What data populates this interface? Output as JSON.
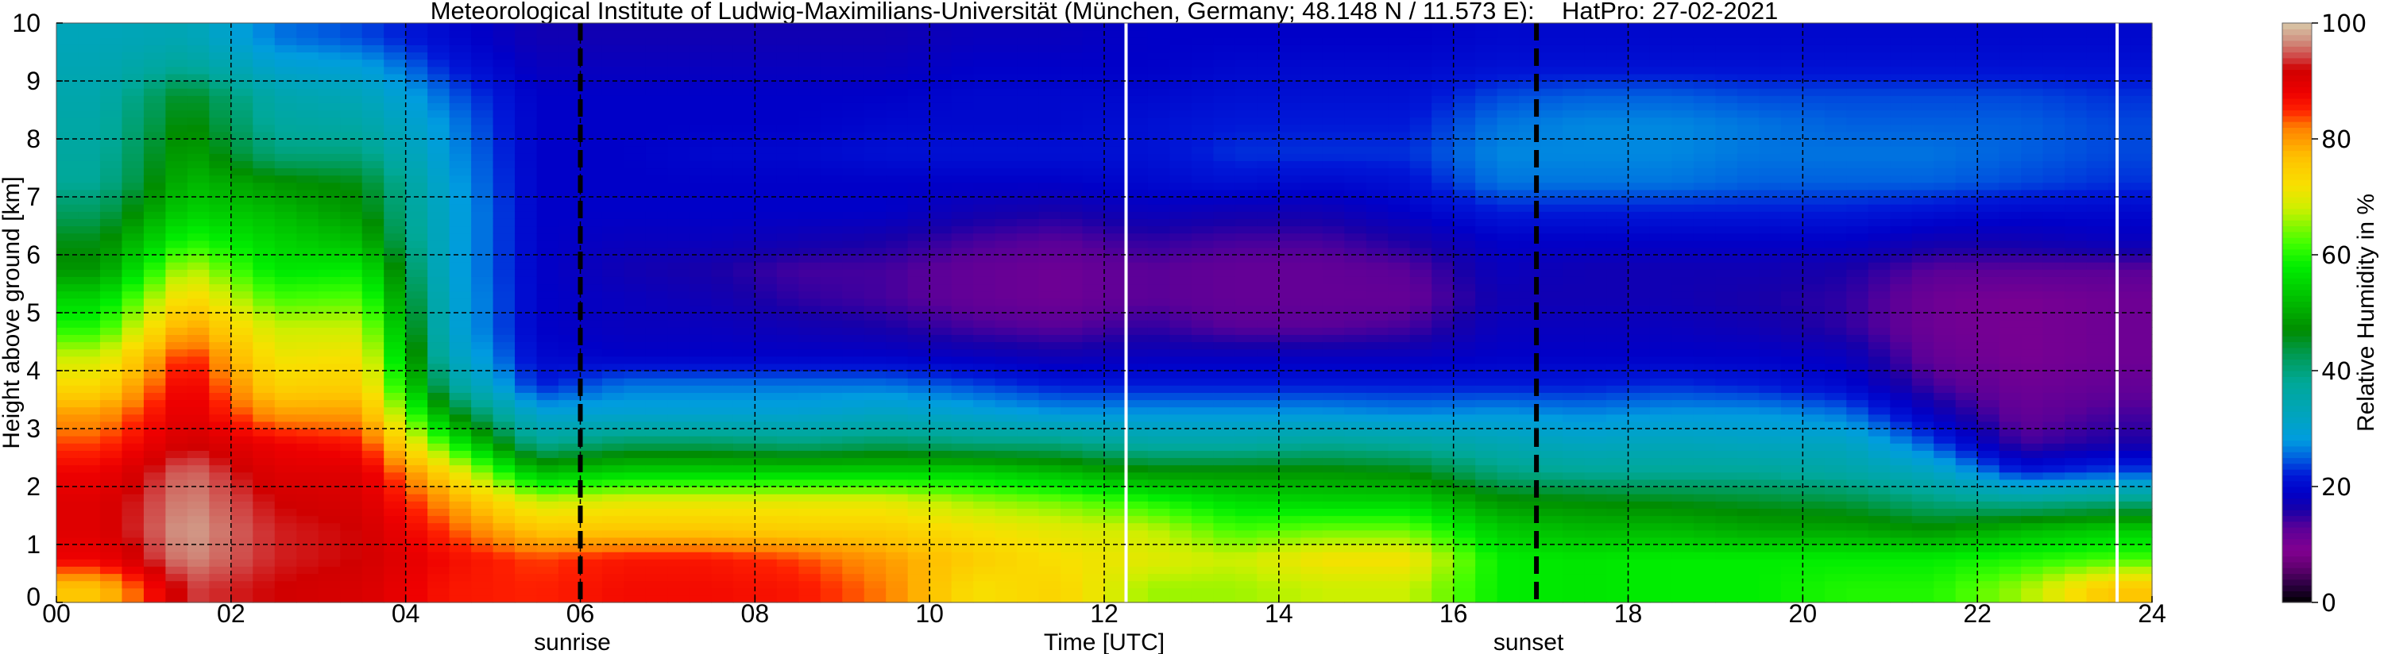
{
  "chart_data": {
    "type": "heatmap",
    "title": "Meteorological Institute of Ludwig-Maximilians-Universität (München, Germany; 48.148 N / 11.573 E):    HatPro: 27-02-2021",
    "xlabel": "Time [UTC]",
    "ylabel": "Height above ground [km]",
    "colorbar_label": "Relative Humidity in %",
    "xlim": [
      0,
      24
    ],
    "ylim": [
      0,
      10
    ],
    "clim": [
      0,
      100
    ],
    "x_ticks": [
      0,
      2,
      4,
      6,
      8,
      10,
      12,
      14,
      16,
      18,
      20,
      22,
      24
    ],
    "x_tick_labels": [
      "00",
      "02",
      "04",
      "06",
      "08",
      "10",
      "12",
      "14",
      "16",
      "18",
      "20",
      "22",
      "24"
    ],
    "y_ticks": [
      0,
      1,
      2,
      3,
      4,
      5,
      6,
      7,
      8,
      9,
      10
    ],
    "y_tick_labels": [
      "0",
      "1",
      "2",
      "3",
      "4",
      "5",
      "6",
      "7",
      "8",
      "9",
      "10"
    ],
    "colorbar_ticks": [
      0,
      20,
      40,
      60,
      80,
      100
    ],
    "colorbar_tick_labels": [
      "0",
      "20",
      "40",
      "60",
      "80",
      "100"
    ],
    "grid": true,
    "events": [
      {
        "label": "sunrise",
        "time": 6.0
      },
      {
        "label": "sunset",
        "time": 16.95
      }
    ],
    "missing_times": [
      12.25,
      23.6
    ],
    "time_step_hours": 1,
    "height_step_km": 0.5,
    "values": [
      [
        76,
        88,
        90,
        90,
        88,
        84,
        80,
        73,
        68,
        60,
        55,
        48,
        46,
        42,
        38,
        37,
        36,
        35,
        34,
        33
      ],
      [
        94,
        97,
        98,
        97,
        96,
        92,
        90,
        89,
        86,
        80,
        74,
        68,
        60,
        55,
        52,
        50,
        48,
        46,
        38,
        34
      ],
      [
        92,
        93,
        93,
        92,
        90,
        88,
        80,
        74,
        71,
        68,
        62,
        57,
        55,
        52,
        48,
        40,
        37,
        35,
        30,
        26
      ],
      [
        91,
        92,
        92,
        91,
        90,
        86,
        80,
        75,
        72,
        68,
        63,
        58,
        52,
        48,
        46,
        40,
        36,
        33,
        29,
        24
      ],
      [
        86,
        87,
        84,
        80,
        73,
        60,
        48,
        38,
        33,
        31,
        31,
        30,
        30,
        30,
        29,
        28,
        27,
        25,
        22,
        20
      ],
      [
        85,
        84,
        76,
        68,
        52,
        38,
        30,
        22,
        20,
        19,
        19,
        19,
        19,
        19,
        19,
        19,
        19,
        19,
        18,
        17
      ],
      [
        87,
        86,
        76,
        70,
        55,
        42,
        30,
        26,
        19,
        18,
        18,
        17,
        18,
        19,
        19,
        19,
        19,
        19,
        18,
        17
      ],
      [
        87,
        86,
        76,
        70,
        55,
        42,
        30,
        26,
        19,
        18,
        17,
        16,
        18,
        19,
        19,
        20,
        19,
        19,
        18,
        17
      ],
      [
        86,
        84,
        75,
        70,
        55,
        40,
        30,
        26,
        19,
        17,
        15,
        14,
        17,
        19,
        19,
        20,
        19,
        19,
        18,
        17
      ],
      [
        82,
        80,
        75,
        70,
        55,
        42,
        32,
        26,
        19,
        16,
        14,
        14,
        16,
        19,
        19,
        21,
        20,
        19,
        18,
        17
      ],
      [
        72,
        75,
        72,
        66,
        55,
        40,
        30,
        24,
        18,
        14,
        12,
        12,
        14,
        17,
        19,
        21,
        20,
        20,
        19,
        18
      ],
      [
        74,
        72,
        70,
        64,
        52,
        40,
        28,
        22,
        17,
        13,
        11,
        11,
        13,
        16,
        19,
        21,
        20,
        20,
        19,
        18
      ],
      [
        66,
        70,
        68,
        60,
        48,
        36,
        28,
        22,
        18,
        15,
        13,
        13,
        15,
        18,
        20,
        21,
        21,
        20,
        19,
        19
      ],
      [
        66,
        68,
        62,
        56,
        48,
        36,
        28,
        22,
        18,
        13,
        12,
        12,
        14,
        17,
        21,
        23,
        22,
        21,
        20,
        19
      ],
      [
        68,
        72,
        64,
        55,
        48,
        38,
        28,
        22,
        18,
        13,
        12,
        12,
        14,
        17,
        20,
        23,
        22,
        21,
        20,
        19
      ],
      [
        68,
        72,
        64,
        55,
        47,
        37,
        27,
        22,
        18,
        14,
        12,
        13,
        16,
        19,
        21,
        23,
        22,
        21,
        20,
        19
      ],
      [
        58,
        58,
        54,
        48,
        40,
        34,
        28,
        22,
        19,
        18,
        17,
        18,
        19,
        22,
        26,
        27,
        26,
        24,
        21,
        20
      ],
      [
        57,
        57,
        52,
        47,
        38,
        32,
        27,
        22,
        19,
        18,
        17,
        17,
        19,
        22,
        26,
        27,
        27,
        25,
        21,
        20
      ],
      [
        58,
        58,
        52,
        46,
        38,
        33,
        28,
        23,
        19,
        18,
        17,
        17,
        19,
        22,
        26,
        27,
        27,
        25,
        21,
        20
      ],
      [
        58,
        58,
        50,
        45,
        38,
        32,
        28,
        22,
        19,
        17,
        16,
        17,
        19,
        22,
        25,
        26,
        26,
        24,
        21,
        20
      ],
      [
        60,
        58,
        50,
        44,
        36,
        32,
        26,
        20,
        18,
        15,
        15,
        16,
        19,
        22,
        25,
        26,
        25,
        24,
        21,
        20
      ],
      [
        60,
        58,
        48,
        40,
        32,
        24,
        18,
        14,
        12,
        11,
        11,
        13,
        17,
        21,
        25,
        26,
        25,
        24,
        21,
        20
      ],
      [
        66,
        60,
        52,
        38,
        22,
        14,
        12,
        11,
        10,
        10,
        10,
        13,
        17,
        20,
        24,
        25,
        25,
        24,
        21,
        20
      ],
      [
        76,
        62,
        54,
        40,
        24,
        16,
        14,
        12,
        11,
        11,
        11,
        13,
        18,
        20,
        23,
        24,
        24,
        23,
        21,
        20
      ]
    ],
    "colormap": [
      [
        0,
        "#000000"
      ],
      [
        3,
        "#2a0040"
      ],
      [
        6,
        "#600070"
      ],
      [
        9,
        "#820090"
      ],
      [
        13,
        "#5a0098"
      ],
      [
        16,
        "#1800a8"
      ],
      [
        19,
        "#0000c8"
      ],
      [
        22,
        "#0018d8"
      ],
      [
        25,
        "#0060e0"
      ],
      [
        28,
        "#009ce0"
      ],
      [
        32,
        "#00a4c0"
      ],
      [
        38,
        "#00a898"
      ],
      [
        43,
        "#009a50"
      ],
      [
        47,
        "#008c00"
      ],
      [
        52,
        "#00bb00"
      ],
      [
        58,
        "#00ee00"
      ],
      [
        62,
        "#40ff00"
      ],
      [
        68,
        "#ccf000"
      ],
      [
        72,
        "#f8e000"
      ],
      [
        77,
        "#ffc000"
      ],
      [
        82,
        "#ff8000"
      ],
      [
        85,
        "#ff2000"
      ],
      [
        88,
        "#ee0000"
      ],
      [
        92,
        "#d00000"
      ],
      [
        94,
        "#d04040"
      ],
      [
        97,
        "#d09080"
      ],
      [
        100,
        "#d8c8a8"
      ]
    ]
  }
}
